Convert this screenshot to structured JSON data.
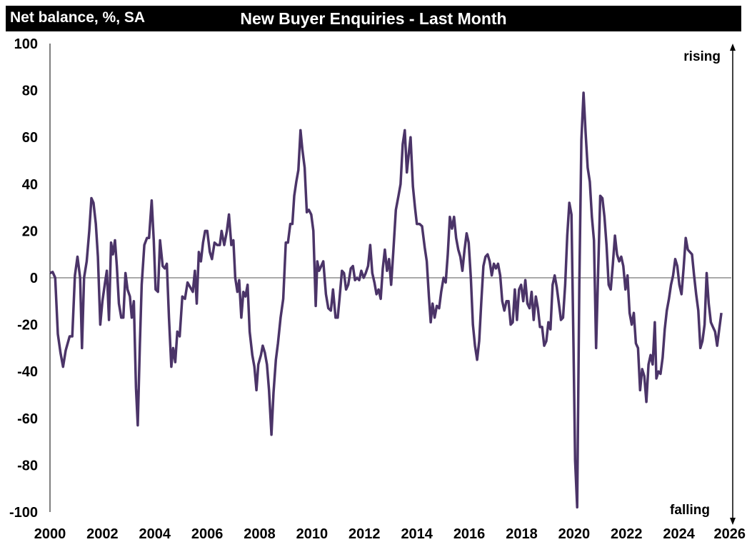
{
  "chart_data": {
    "type": "line",
    "title": "New Buyer Enquiries - Last Month",
    "ylabel": "Net balance, %, SA",
    "xlabel": "",
    "xlim": [
      2000,
      2026
    ],
    "ylim": [
      -100,
      100
    ],
    "x_ticks": [
      "2000",
      "2002",
      "2004",
      "2006",
      "2008",
      "2010",
      "2012",
      "2014",
      "2016",
      "2018",
      "2020",
      "2022",
      "2024",
      "2026"
    ],
    "y_ticks": [
      "100",
      "80",
      "60",
      "40",
      "20",
      "0",
      "-20",
      "-40",
      "-60",
      "-80",
      "-100"
    ],
    "annotations": {
      "top": "rising",
      "bottom": "falling"
    },
    "grid": false,
    "zero_line": true,
    "line_color": "#4b3468",
    "series": [
      {
        "values": [
          [
            2000.0,
            2
          ],
          [
            2000.1,
            2.5
          ],
          [
            2000.2,
            0
          ],
          [
            2000.3,
            -24
          ],
          [
            2000.4,
            -32
          ],
          [
            2000.5,
            -38
          ],
          [
            2000.6,
            -31
          ],
          [
            2000.75,
            -25
          ],
          [
            2000.85,
            -25
          ],
          [
            2000.95,
            1
          ],
          [
            2001.05,
            9
          ],
          [
            2001.15,
            0
          ],
          [
            2001.22,
            -30
          ],
          [
            2001.3,
            0
          ],
          [
            2001.4,
            7
          ],
          [
            2001.5,
            20
          ],
          [
            2001.58,
            34
          ],
          [
            2001.66,
            32
          ],
          [
            2001.75,
            23
          ],
          [
            2001.83,
            9
          ],
          [
            2001.92,
            -20
          ],
          [
            2002.0,
            -10
          ],
          [
            2002.1,
            -2
          ],
          [
            2002.17,
            3
          ],
          [
            2002.25,
            -18
          ],
          [
            2002.33,
            15
          ],
          [
            2002.4,
            10
          ],
          [
            2002.48,
            16
          ],
          [
            2002.55,
            5
          ],
          [
            2002.63,
            -11
          ],
          [
            2002.72,
            -17
          ],
          [
            2002.8,
            -17
          ],
          [
            2002.88,
            2
          ],
          [
            2002.96,
            -5
          ],
          [
            2003.05,
            -8
          ],
          [
            2003.12,
            -17
          ],
          [
            2003.2,
            -10
          ],
          [
            2003.28,
            -47
          ],
          [
            2003.35,
            -63
          ],
          [
            2003.43,
            -28
          ],
          [
            2003.5,
            -3
          ],
          [
            2003.6,
            14
          ],
          [
            2003.7,
            17
          ],
          [
            2003.78,
            17
          ],
          [
            2003.88,
            33
          ],
          [
            2003.96,
            16
          ],
          [
            2004.03,
            -5
          ],
          [
            2004.12,
            -6
          ],
          [
            2004.2,
            16
          ],
          [
            2004.3,
            5
          ],
          [
            2004.38,
            4
          ],
          [
            2004.46,
            6
          ],
          [
            2004.54,
            -17
          ],
          [
            2004.63,
            -38
          ],
          [
            2004.7,
            -30
          ],
          [
            2004.78,
            -36
          ],
          [
            2004.86,
            -23
          ],
          [
            2004.95,
            -25
          ],
          [
            2005.05,
            -8
          ],
          [
            2005.15,
            -9
          ],
          [
            2005.25,
            -2
          ],
          [
            2005.35,
            -4
          ],
          [
            2005.45,
            -6
          ],
          [
            2005.53,
            3
          ],
          [
            2005.6,
            -11
          ],
          [
            2005.68,
            11
          ],
          [
            2005.76,
            7
          ],
          [
            2005.84,
            15
          ],
          [
            2005.92,
            20
          ],
          [
            2006.0,
            20
          ],
          [
            2006.1,
            11
          ],
          [
            2006.18,
            8
          ],
          [
            2006.28,
            15
          ],
          [
            2006.38,
            14
          ],
          [
            2006.48,
            14
          ],
          [
            2006.55,
            20
          ],
          [
            2006.65,
            14
          ],
          [
            2006.75,
            20
          ],
          [
            2006.83,
            27
          ],
          [
            2006.92,
            14
          ],
          [
            2007.0,
            16
          ],
          [
            2007.07,
            0
          ],
          [
            2007.15,
            -6
          ],
          [
            2007.22,
            -1
          ],
          [
            2007.3,
            -17
          ],
          [
            2007.38,
            -6
          ],
          [
            2007.46,
            -8
          ],
          [
            2007.54,
            -3
          ],
          [
            2007.62,
            -23
          ],
          [
            2007.72,
            -33
          ],
          [
            2007.8,
            -38
          ],
          [
            2007.88,
            -48
          ],
          [
            2007.95,
            -37
          ],
          [
            2008.05,
            -33
          ],
          [
            2008.12,
            -29
          ],
          [
            2008.2,
            -32
          ],
          [
            2008.28,
            -37
          ],
          [
            2008.36,
            -48
          ],
          [
            2008.45,
            -67
          ],
          [
            2008.53,
            -49
          ],
          [
            2008.62,
            -35
          ],
          [
            2008.7,
            -28
          ],
          [
            2008.8,
            -17
          ],
          [
            2008.9,
            -9
          ],
          [
            2009.0,
            15
          ],
          [
            2009.08,
            15
          ],
          [
            2009.17,
            23
          ],
          [
            2009.25,
            23
          ],
          [
            2009.32,
            35
          ],
          [
            2009.4,
            41
          ],
          [
            2009.48,
            46
          ],
          [
            2009.56,
            63
          ],
          [
            2009.63,
            55
          ],
          [
            2009.72,
            47
          ],
          [
            2009.8,
            28
          ],
          [
            2009.88,
            29
          ],
          [
            2009.97,
            27
          ],
          [
            2010.05,
            20
          ],
          [
            2010.14,
            -12
          ],
          [
            2010.2,
            7
          ],
          [
            2010.27,
            3
          ],
          [
            2010.35,
            5
          ],
          [
            2010.43,
            7
          ],
          [
            2010.53,
            -7
          ],
          [
            2010.62,
            -13
          ],
          [
            2010.72,
            -14
          ],
          [
            2010.8,
            -5
          ],
          [
            2010.9,
            -17
          ],
          [
            2010.98,
            -17
          ],
          [
            2011.05,
            -9
          ],
          [
            2011.14,
            3
          ],
          [
            2011.22,
            2
          ],
          [
            2011.3,
            -5
          ],
          [
            2011.38,
            -3
          ],
          [
            2011.48,
            4
          ],
          [
            2011.56,
            5
          ],
          [
            2011.64,
            -1
          ],
          [
            2011.72,
            0
          ],
          [
            2011.8,
            -1
          ],
          [
            2011.88,
            3
          ],
          [
            2011.97,
            0
          ],
          [
            2012.05,
            2
          ],
          [
            2012.14,
            5
          ],
          [
            2012.22,
            14
          ],
          [
            2012.3,
            2
          ],
          [
            2012.38,
            -2
          ],
          [
            2012.46,
            -7
          ],
          [
            2012.54,
            -5
          ],
          [
            2012.62,
            -9
          ],
          [
            2012.7,
            4
          ],
          [
            2012.78,
            12
          ],
          [
            2012.86,
            3
          ],
          [
            2012.94,
            8
          ],
          [
            2013.02,
            -3
          ],
          [
            2013.1,
            11
          ],
          [
            2013.2,
            29
          ],
          [
            2013.3,
            35
          ],
          [
            2013.38,
            40
          ],
          [
            2013.46,
            57
          ],
          [
            2013.54,
            63
          ],
          [
            2013.62,
            45
          ],
          [
            2013.7,
            54
          ],
          [
            2013.76,
            60
          ],
          [
            2013.85,
            39
          ],
          [
            2013.93,
            30
          ],
          [
            2014.0,
            23
          ],
          [
            2014.1,
            23
          ],
          [
            2014.2,
            22
          ],
          [
            2014.3,
            13
          ],
          [
            2014.38,
            7
          ],
          [
            2014.46,
            -8
          ],
          [
            2014.53,
            -19
          ],
          [
            2014.6,
            -11
          ],
          [
            2014.68,
            -17
          ],
          [
            2014.76,
            -12
          ],
          [
            2014.85,
            -13
          ],
          [
            2014.93,
            -6
          ],
          [
            2015.02,
            0
          ],
          [
            2015.1,
            -2
          ],
          [
            2015.18,
            10
          ],
          [
            2015.26,
            26
          ],
          [
            2015.34,
            21
          ],
          [
            2015.42,
            26
          ],
          [
            2015.5,
            17
          ],
          [
            2015.58,
            12
          ],
          [
            2015.66,
            9
          ],
          [
            2015.74,
            3
          ],
          [
            2015.82,
            12
          ],
          [
            2015.9,
            19
          ],
          [
            2015.98,
            15
          ],
          [
            2016.06,
            0
          ],
          [
            2016.14,
            -20
          ],
          [
            2016.22,
            -29
          ],
          [
            2016.3,
            -35
          ],
          [
            2016.38,
            -27
          ],
          [
            2016.46,
            -10
          ],
          [
            2016.54,
            5
          ],
          [
            2016.62,
            9
          ],
          [
            2016.7,
            10
          ],
          [
            2016.78,
            7
          ],
          [
            2016.86,
            1
          ],
          [
            2016.94,
            6
          ],
          [
            2017.02,
            4
          ],
          [
            2017.1,
            6
          ],
          [
            2017.18,
            1
          ],
          [
            2017.26,
            -10
          ],
          [
            2017.34,
            -14
          ],
          [
            2017.42,
            -10
          ],
          [
            2017.5,
            -10
          ],
          [
            2017.58,
            -20
          ],
          [
            2017.66,
            -19
          ],
          [
            2017.74,
            -5
          ],
          [
            2017.82,
            -18
          ],
          [
            2017.9,
            -5
          ],
          [
            2017.98,
            -3
          ],
          [
            2018.06,
            -10
          ],
          [
            2018.14,
            -1
          ],
          [
            2018.22,
            -11
          ],
          [
            2018.3,
            -13
          ],
          [
            2018.38,
            -6
          ],
          [
            2018.46,
            -18
          ],
          [
            2018.54,
            -8
          ],
          [
            2018.62,
            -13
          ],
          [
            2018.7,
            -21
          ],
          [
            2018.78,
            -21
          ],
          [
            2018.86,
            -29
          ],
          [
            2018.94,
            -27
          ],
          [
            2019.02,
            -19
          ],
          [
            2019.1,
            -22
          ],
          [
            2019.18,
            -3
          ],
          [
            2019.26,
            1
          ],
          [
            2019.34,
            -4
          ],
          [
            2019.42,
            -11
          ],
          [
            2019.5,
            -18
          ],
          [
            2019.58,
            -17
          ],
          [
            2019.66,
            -3
          ],
          [
            2019.74,
            18
          ],
          [
            2019.82,
            32
          ],
          [
            2019.9,
            27
          ],
          [
            2019.98,
            -30
          ],
          [
            2020.04,
            -78
          ],
          [
            2020.12,
            -98
          ],
          [
            2020.2,
            -3
          ],
          [
            2020.28,
            59
          ],
          [
            2020.36,
            79
          ],
          [
            2020.44,
            62
          ],
          [
            2020.52,
            47
          ],
          [
            2020.6,
            41
          ],
          [
            2020.68,
            26
          ],
          [
            2020.76,
            16
          ],
          [
            2020.84,
            -30
          ],
          [
            2020.92,
            3
          ],
          [
            2021.0,
            35
          ],
          [
            2021.08,
            34
          ],
          [
            2021.16,
            26
          ],
          [
            2021.24,
            14
          ],
          [
            2021.32,
            -3
          ],
          [
            2021.4,
            -5
          ],
          [
            2021.48,
            6
          ],
          [
            2021.56,
            18
          ],
          [
            2021.64,
            10
          ],
          [
            2021.72,
            7
          ],
          [
            2021.8,
            9
          ],
          [
            2021.88,
            5
          ],
          [
            2021.96,
            -5
          ],
          [
            2022.04,
            1
          ],
          [
            2022.12,
            -15
          ],
          [
            2022.2,
            -20
          ],
          [
            2022.28,
            -15
          ],
          [
            2022.36,
            -28
          ],
          [
            2022.44,
            -30
          ],
          [
            2022.52,
            -48
          ],
          [
            2022.6,
            -39
          ],
          [
            2022.68,
            -42
          ],
          [
            2022.76,
            -53
          ],
          [
            2022.84,
            -37
          ],
          [
            2022.92,
            -33
          ],
          [
            2023.0,
            -37
          ],
          [
            2023.08,
            -19
          ],
          [
            2023.14,
            -43
          ],
          [
            2023.22,
            -40
          ],
          [
            2023.3,
            -41
          ],
          [
            2023.38,
            -34
          ],
          [
            2023.46,
            -22
          ],
          [
            2023.54,
            -14
          ],
          [
            2023.62,
            -9
          ],
          [
            2023.7,
            -3
          ],
          [
            2023.78,
            1
          ],
          [
            2023.86,
            8
          ],
          [
            2023.94,
            5
          ],
          [
            2024.02,
            -3
          ],
          [
            2024.1,
            -7
          ],
          [
            2024.18,
            4
          ],
          [
            2024.26,
            17
          ],
          [
            2024.34,
            12
          ],
          [
            2024.42,
            11
          ],
          [
            2024.5,
            10
          ],
          [
            2024.58,
            1
          ],
          [
            2024.66,
            -7
          ],
          [
            2024.74,
            -14
          ],
          [
            2024.82,
            -30
          ],
          [
            2024.9,
            -27
          ],
          [
            2024.98,
            -20
          ],
          [
            2025.06,
            2
          ],
          [
            2025.14,
            -11
          ],
          [
            2025.22,
            -19
          ],
          [
            2025.3,
            -21
          ],
          [
            2025.38,
            -23
          ],
          [
            2025.46,
            -29
          ],
          [
            2025.54,
            -22
          ],
          [
            2025.62,
            -15
          ]
        ]
      }
    ]
  }
}
